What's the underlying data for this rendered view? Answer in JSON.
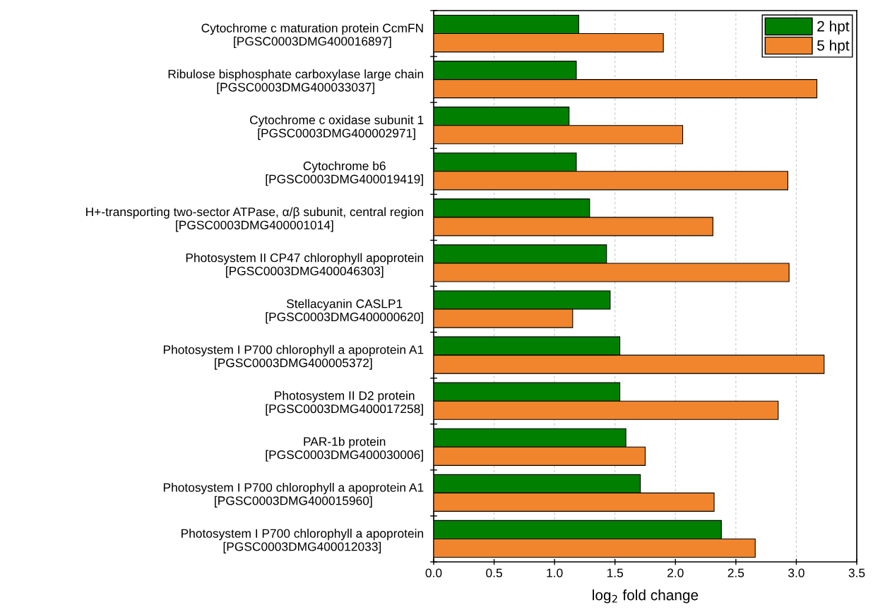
{
  "chart_data": {
    "type": "bar",
    "orientation": "horizontal",
    "xlabel": "log$_{2}$ fold change",
    "categories": [
      "Cytochrome c maturation protein CcmFN\n[PGSC0003DMG400016897]",
      "Ribulose bisphosphate carboxylase large chain\n[PGSC0003DMG400033037]",
      "Cytochrome c oxidase subunit 1\n[PGSC0003DMG400002971]",
      "Cytochrome b6\n[PGSC0003DMG400019419]",
      "H+-transporting two-sector ATPase, α/β subunit, central region\n[PGSC0003DMG400001014]",
      "Photosystem II CP47 chlorophyll apoprotein\n[PGSC0003DMG400046303]",
      "Stellacyanin CASLP1\n[PGSC0003DMG400000620]",
      "Photosystem I P700 chlorophyll a apoprotein A1\n[PGSC0003DMG400005372]",
      "Photosystem II D2 protein\n[PGSC0003DMG400017258]",
      "PAR-1b protein\n[PGSC0003DMG400030006]",
      "Photosystem I P700 chlorophyll a apoprotein A1\n[PGSC0003DMG400015960]",
      "Photosystem I P700 chlorophyll a apoprotein\n[PGSC0003DMG400012033]"
    ],
    "series": [
      {
        "name": "2 hpt",
        "color": "#007f00",
        "values": [
          1.2,
          1.18,
          1.12,
          1.18,
          1.29,
          1.43,
          1.46,
          1.54,
          1.54,
          1.59,
          1.71,
          2.38
        ]
      },
      {
        "name": "5 hpt",
        "color": "#f0852d",
        "values": [
          1.9,
          3.17,
          2.06,
          2.93,
          2.31,
          2.94,
          1.15,
          3.23,
          2.85,
          1.75,
          2.32,
          2.66
        ]
      }
    ],
    "xlim": [
      0,
      3.5
    ],
    "xticks": [
      {
        "value": 0,
        "label": "0.0"
      },
      0.5,
      {
        "value": 1,
        "label": "1.0"
      },
      1.5,
      {
        "value": 2,
        "label": "2.0"
      },
      2.5,
      {
        "value": 3,
        "label": "3.0"
      },
      3.5
    ],
    "grid": "x",
    "legend": "top right"
  }
}
